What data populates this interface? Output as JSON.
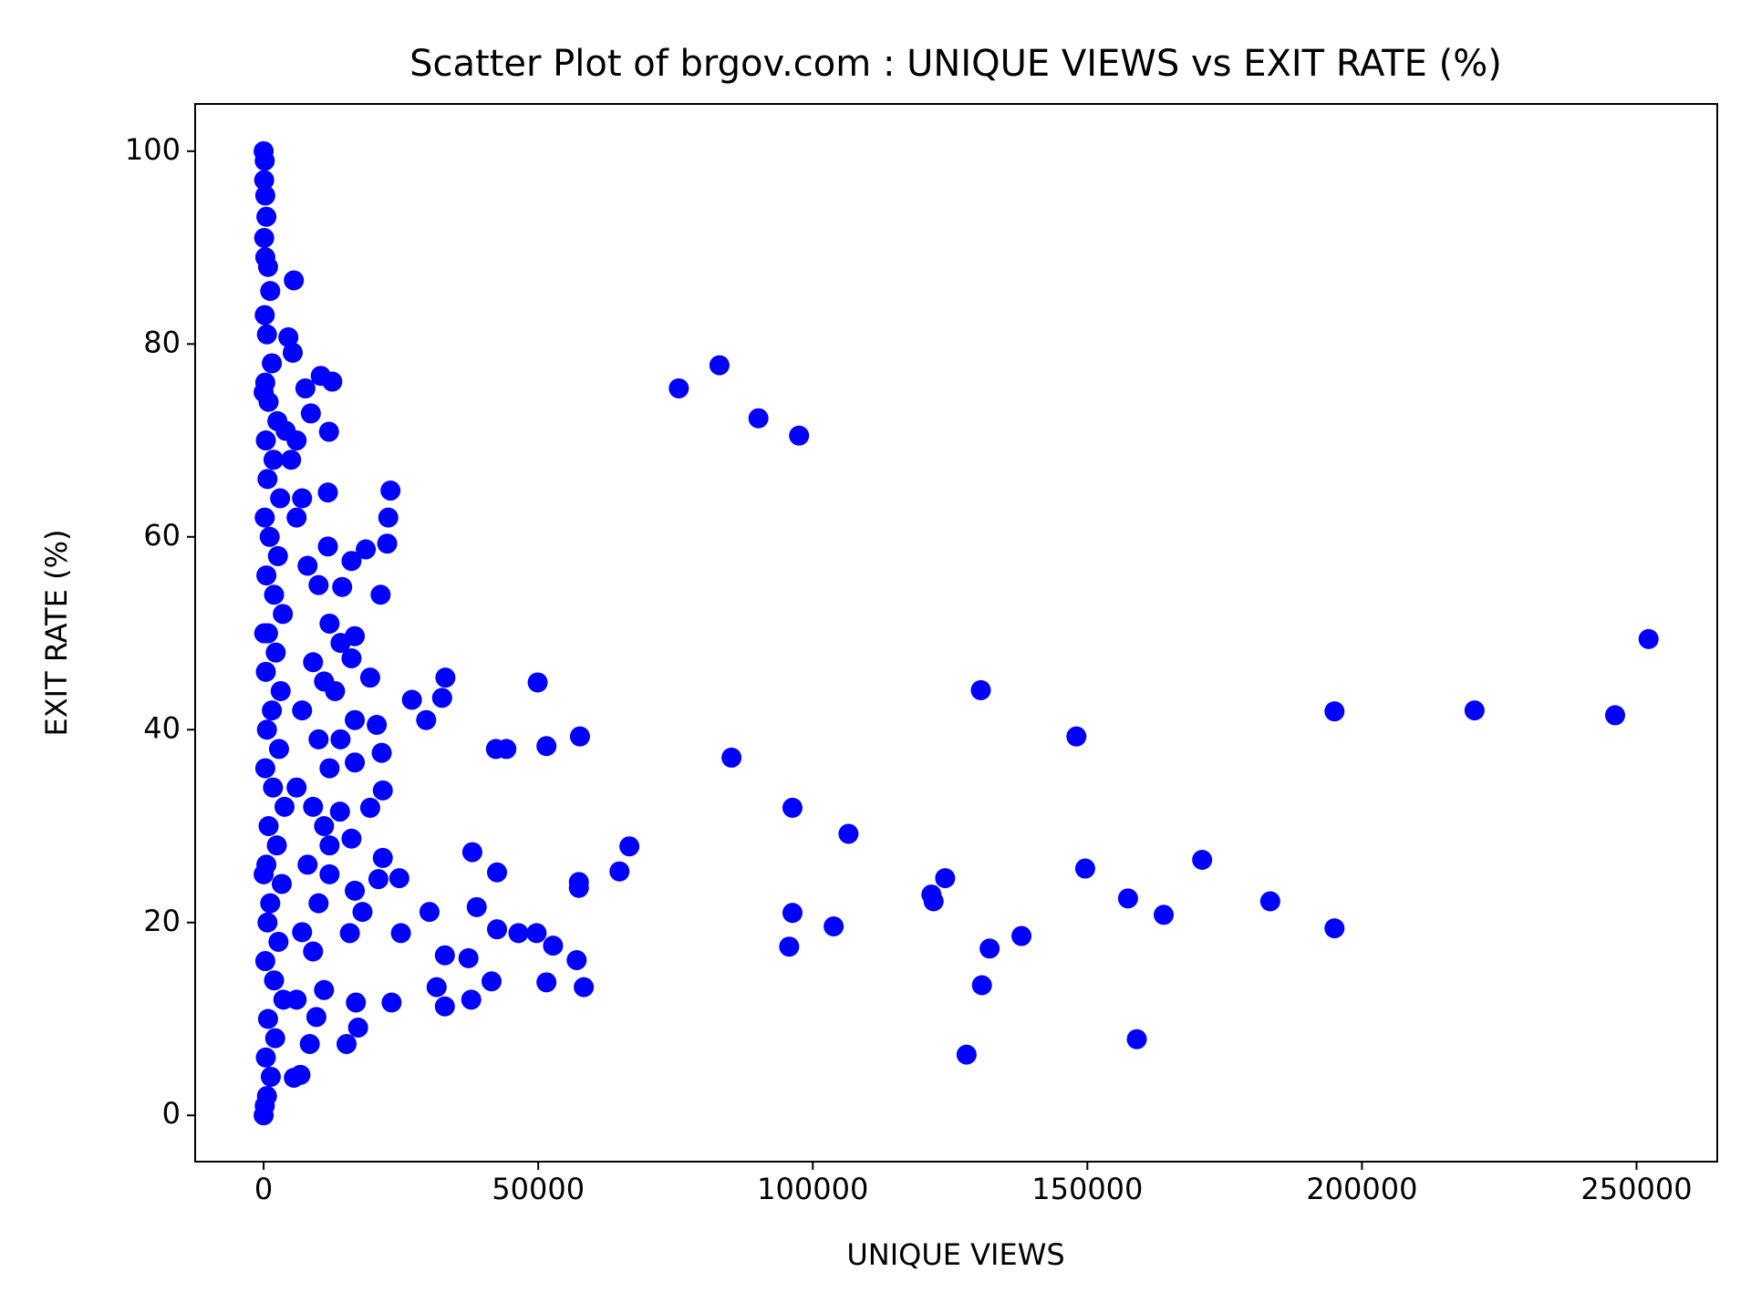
{
  "chart_data": {
    "type": "scatter",
    "title": "Scatter Plot of brgov.com : UNIQUE VIEWS vs EXIT RATE (%)",
    "x_label": "UNIQUE VIEWS",
    "y_label": "EXIT RATE (%)",
    "color": "#0000ff",
    "xlim": [
      -12470,
      264700
    ],
    "ylim": [
      -4.8,
      104.9
    ],
    "xticks": [
      0,
      50000,
      100000,
      150000,
      200000,
      250000
    ],
    "yticks": [
      0,
      20,
      40,
      60,
      80,
      100
    ],
    "x": [
      252200,
      246100,
      220500,
      195000,
      195000,
      183300,
      170900,
      163900,
      157400,
      149600,
      148000,
      159000,
      138000,
      132200,
      130800,
      130600,
      128000,
      124100,
      122000,
      121600,
      106500,
      103800,
      96300,
      96300,
      95700,
      97500,
      90100,
      83000,
      75600,
      85200,
      66600,
      64800,
      58300,
      57000,
      57400,
      57400,
      57600,
      51500,
      51500,
      52700,
      49900,
      49700,
      46400,
      44200,
      42300,
      42500,
      42500,
      41500,
      38800,
      38000,
      37800,
      37300,
      33100,
      32500,
      33000,
      33000,
      31500,
      30200,
      29600,
      27000,
      25000,
      24700,
      23300,
      23100,
      22700,
      22500,
      21700,
      21500,
      21300,
      21700,
      20900,
      20600,
      19400,
      19400,
      18600,
      18000,
      17200,
      16800,
      16600,
      16600,
      16600,
      16600,
      16000,
      16000,
      16000,
      15700,
      15100,
      14300,
      13900,
      12500,
      11900,
      11700,
      11700,
      10400,
      9600,
      8600,
      8400,
      7600,
      6700,
      5500,
      5500,
      5300,
      4500,
      0,
      200,
      100,
      300,
      500,
      100,
      300,
      800,
      1200,
      200,
      600,
      1500,
      300,
      900,
      2500,
      400,
      1800,
      700,
      3000,
      200,
      1100,
      2600,
      500,
      1900,
      3500,
      800,
      2200,
      400,
      3100,
      1500,
      600,
      2800,
      300,
      1700,
      3800,
      900,
      2400,
      500,
      3300,
      1200,
      700,
      2700,
      300,
      1900,
      3600,
      800,
      2100,
      400,
      1300,
      600,
      0,
      200,
      100,
      0,
      0,
      6000,
      8000,
      10000,
      12000,
      9000,
      11000,
      13000,
      7000,
      10000,
      12000,
      6000,
      9000,
      11000,
      8000,
      12000,
      10000,
      7000,
      9000,
      11000,
      6000,
      5000,
      6000,
      4000,
      7000,
      14000,
      14000,
      12000
    ],
    "values": [
      49.4,
      41.5,
      42.0,
      41.9,
      19.4,
      22.2,
      26.5,
      20.8,
      22.5,
      25.6,
      39.3,
      7.9,
      18.6,
      17.3,
      13.5,
      44.1,
      6.3,
      24.6,
      22.2,
      22.9,
      29.2,
      19.6,
      31.9,
      21.0,
      17.5,
      70.5,
      72.3,
      77.8,
      75.4,
      37.1,
      27.9,
      25.3,
      13.3,
      16.1,
      24.2,
      23.6,
      39.3,
      38.3,
      13.8,
      17.6,
      44.9,
      18.9,
      18.9,
      38.0,
      38.0,
      25.2,
      19.3,
      13.9,
      21.6,
      27.3,
      12.0,
      16.3,
      45.4,
      43.3,
      16.6,
      11.3,
      13.3,
      21.1,
      41.0,
      43.1,
      18.9,
      24.6,
      11.7,
      64.8,
      62.0,
      59.3,
      26.7,
      37.6,
      54.0,
      33.7,
      24.5,
      40.5,
      31.9,
      45.4,
      58.7,
      21.1,
      9.1,
      11.7,
      49.7,
      41.0,
      36.6,
      23.3,
      47.4,
      57.5,
      28.7,
      18.9,
      7.4,
      54.8,
      31.5,
      76.1,
      70.9,
      64.6,
      59.0,
      76.7,
      10.2,
      72.8,
      7.4,
      75.4,
      4.2,
      86.6,
      3.9,
      79.1,
      80.7,
      100,
      99,
      97,
      95.4,
      93.2,
      91,
      89,
      88,
      85.5,
      83,
      81,
      78,
      76,
      74,
      72,
      70,
      68,
      66,
      64,
      62,
      60,
      58,
      56,
      54,
      52,
      50,
      48,
      46,
      44,
      42,
      40,
      38,
      36,
      34,
      32,
      30,
      28,
      26,
      24,
      22,
      20,
      18,
      16,
      14,
      12,
      10,
      8,
      6,
      4,
      2,
      0,
      1,
      50,
      75,
      25,
      62,
      57,
      55,
      51,
      47,
      45,
      44,
      42,
      39,
      36,
      34,
      32,
      30,
      26,
      25,
      22,
      19,
      17,
      13,
      12,
      68,
      70,
      71,
      64,
      49,
      39,
      28
    ]
  }
}
